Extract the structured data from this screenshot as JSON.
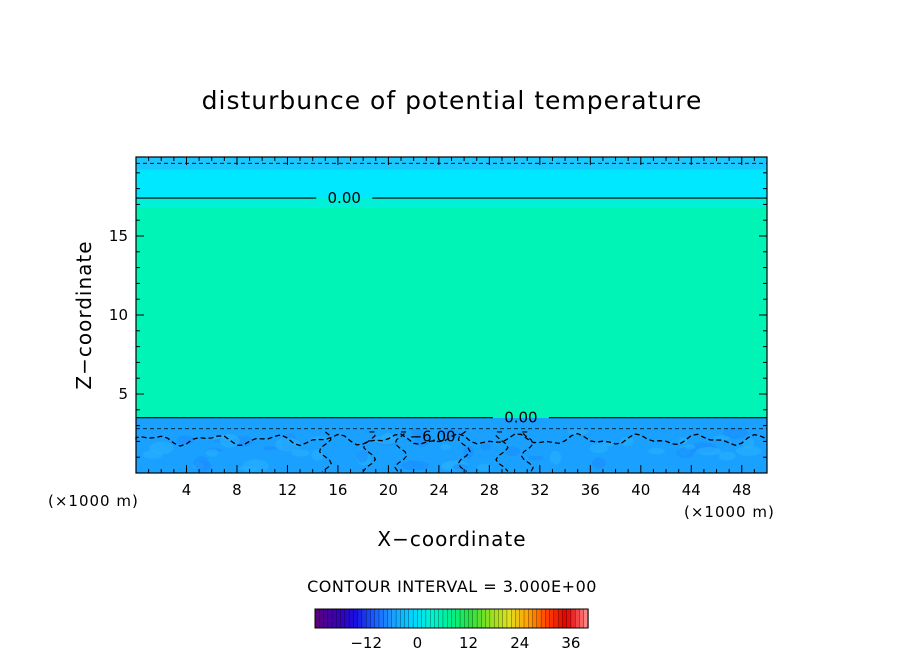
{
  "chart_data": {
    "type": "heatmap",
    "title": "disturbunce of potential temperature",
    "xlabel": "X−coordinate",
    "ylabel": "Z−coordinate",
    "x_unit_left": "(×1000 m)",
    "x_unit_right": "(×1000 m)",
    "xlim": [
      0,
      50
    ],
    "ylim": [
      0,
      20
    ],
    "x_ticks": [
      "4",
      "8",
      "12",
      "16",
      "20",
      "24",
      "28",
      "32",
      "36",
      "40",
      "44",
      "48"
    ],
    "y_ticks": [
      "5",
      "10",
      "15"
    ],
    "contour_interval_text": "CONTOUR INTERVAL = 3.000E+00",
    "contour_labels": [
      {
        "text": "0.00",
        "x": 16.5,
        "z": 17.4
      },
      {
        "text": "0.00",
        "x": 30.5,
        "z": 3.5
      },
      {
        "text": "−6.00",
        "x": 23.5,
        "z": 2.3
      }
    ],
    "bands": [
      {
        "z_from": 17.4,
        "z_to": 20,
        "value_range": [
          -3,
          0
        ],
        "color": "#00e8ff"
      },
      {
        "z_from": 3.5,
        "z_to": 17.4,
        "value_range": [
          0,
          3
        ],
        "color": "#00f4b6"
      },
      {
        "z_from": 0,
        "z_to": 3.5,
        "value_range": [
          -9,
          -3
        ],
        "color": "#1aa0ff"
      }
    ],
    "colorbar": {
      "min": -24,
      "max": 40,
      "tick_labels": [
        "−12",
        "0",
        "12",
        "24",
        "36"
      ],
      "colors": [
        "#5a007f",
        "#3a00b0",
        "#1a10e0",
        "#1a60ff",
        "#1aa0ff",
        "#00d8ff",
        "#00f4d0",
        "#00f08a",
        "#30e040",
        "#90e020",
        "#e0e020",
        "#ffa000",
        "#ff4000",
        "#e00000",
        "#ff8080"
      ]
    }
  }
}
